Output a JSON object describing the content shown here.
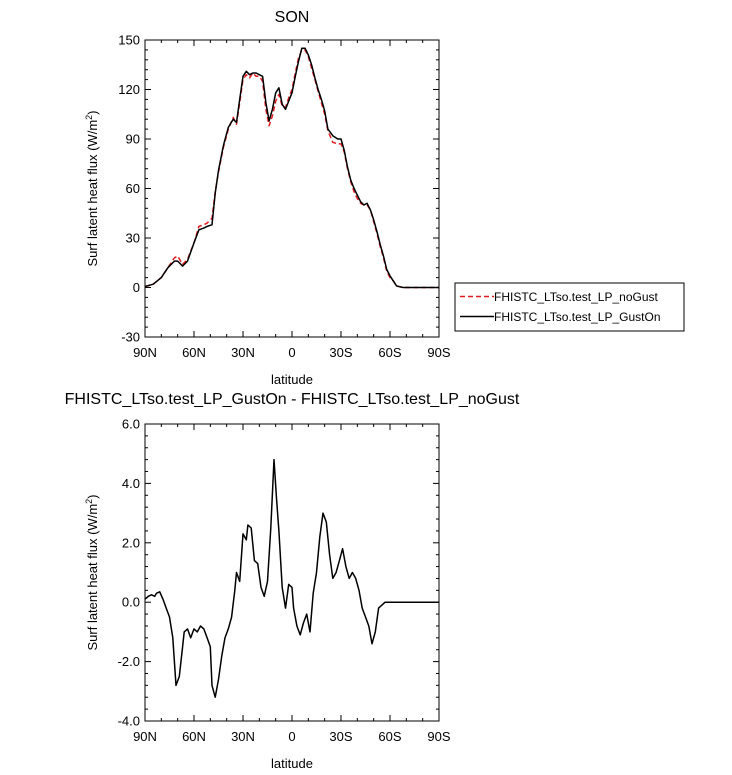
{
  "chart_data": [
    {
      "type": "line",
      "title": "SON",
      "xlabel": "latitude",
      "ylabel": "Surf latent heat flux (W/m",
      "ylabel_sup": "2",
      "ylabel_close": ")",
      "xlim": [
        90,
        -90
      ],
      "ylim": [
        -30,
        150
      ],
      "xticks": [
        {
          "value": 90,
          "label": "90N"
        },
        {
          "value": 60,
          "label": "60N"
        },
        {
          "value": 30,
          "label": "30N"
        },
        {
          "value": 0,
          "label": "0"
        },
        {
          "value": -30,
          "label": "30S"
        },
        {
          "value": -60,
          "label": "60S"
        },
        {
          "value": -90,
          "label": "90S"
        }
      ],
      "yticks": [
        {
          "value": -30,
          "label": "-30"
        },
        {
          "value": 0,
          "label": "0"
        },
        {
          "value": 30,
          "label": "30"
        },
        {
          "value": 60,
          "label": "60"
        },
        {
          "value": 90,
          "label": "90"
        },
        {
          "value": 120,
          "label": "120"
        },
        {
          "value": 150,
          "label": "150"
        }
      ],
      "legend": [
        {
          "name": "FHISTC_LTso.test_LP_noGust",
          "color": "#e41a1c",
          "dash": "dashed"
        },
        {
          "name": "FHISTC_LTso.test_LP_GustOn",
          "color": "#000000",
          "dash": "solid"
        }
      ],
      "series": [
        {
          "name": "FHISTC_LTso.test_LP_noGust",
          "color": "#e41a1c",
          "x": [
            90,
            85,
            80,
            76,
            72,
            70,
            67,
            64,
            60,
            57,
            54,
            52,
            49,
            47,
            45,
            42,
            39,
            36,
            34,
            32,
            30,
            28,
            26,
            24,
            22,
            20,
            18,
            16,
            14,
            12,
            10,
            8,
            6,
            4,
            2,
            0,
            -2,
            -4,
            -6,
            -8,
            -10,
            -12,
            -14,
            -16,
            -18,
            -20,
            -22,
            -25,
            -28,
            -30,
            -32,
            -34,
            -36,
            -38,
            -40,
            -42,
            -44,
            -46,
            -48,
            -50,
            -52,
            -54,
            -56,
            -58,
            -60,
            -62,
            -64,
            -66,
            -68,
            -70,
            -72,
            -75,
            -78,
            -81,
            -85,
            -88,
            -90
          ],
          "y": [
            0.5,
            2,
            6,
            12,
            18,
            19,
            14,
            17,
            27,
            37,
            38,
            39,
            42,
            58,
            70,
            85,
            96,
            103,
            99,
            112,
            126,
            129,
            127,
            130,
            128,
            128,
            125,
            108,
            98,
            104,
            113,
            117,
            110,
            109,
            115,
            120,
            130,
            139,
            144,
            144,
            140,
            133,
            126,
            119,
            112,
            105,
            95,
            88,
            87,
            87,
            82,
            72,
            64,
            58,
            54,
            51,
            50,
            50,
            47,
            40,
            33,
            25,
            18,
            10,
            6,
            4,
            1,
            0.5,
            0,
            0,
            0,
            0,
            0,
            0,
            0,
            0,
            0
          ]
        },
        {
          "name": "FHISTC_LTso.test_LP_GustOn",
          "color": "#000000",
          "x": [
            90,
            85,
            80,
            76,
            72,
            70,
            67,
            64,
            60,
            57,
            54,
            52,
            49,
            47,
            45,
            42,
            39,
            36,
            34,
            32,
            30,
            28,
            26,
            24,
            22,
            20,
            18,
            16,
            14,
            12,
            10,
            8,
            6,
            4,
            2,
            0,
            -2,
            -4,
            -6,
            -8,
            -10,
            -12,
            -14,
            -16,
            -18,
            -20,
            -22,
            -25,
            -28,
            -30,
            -32,
            -34,
            -36,
            -38,
            -40,
            -42,
            -44,
            -46,
            -48,
            -50,
            -52,
            -54,
            -56,
            -58,
            -60,
            -62,
            -64,
            -66,
            -68,
            -70,
            -72,
            -75,
            -78,
            -81,
            -85,
            -88,
            -90
          ],
          "y": [
            0.6,
            2,
            6,
            12,
            16,
            16,
            13,
            16,
            27,
            35,
            36,
            37,
            38,
            57,
            71,
            86,
            97,
            102,
            100,
            114,
            128,
            131,
            129,
            130,
            130,
            129,
            128,
            112,
            101,
            108,
            118,
            121,
            111,
            108,
            113,
            118,
            128,
            137,
            145,
            145,
            141,
            135,
            127,
            120,
            114,
            107,
            96,
            92,
            90,
            90,
            83,
            73,
            65,
            60,
            56,
            52,
            50,
            51,
            47,
            41,
            34,
            26,
            19,
            11,
            7,
            4,
            1,
            0.4,
            0,
            0,
            0,
            0,
            0,
            0,
            0,
            0,
            0
          ]
        }
      ]
    },
    {
      "type": "line",
      "title": "FHISTC_LTso.test_LP_GustOn - FHISTC_LTso.test_LP_noGust",
      "xlabel": "latitude",
      "ylabel": "Surf latent heat flux (W/m",
      "ylabel_sup": "2",
      "ylabel_close": ")",
      "xlim": [
        90,
        -90
      ],
      "ylim": [
        -4.0,
        6.0
      ],
      "xticks": [
        {
          "value": 90,
          "label": "90N"
        },
        {
          "value": 60,
          "label": "60N"
        },
        {
          "value": 30,
          "label": "30N"
        },
        {
          "value": 0,
          "label": "0"
        },
        {
          "value": -30,
          "label": "30S"
        },
        {
          "value": -60,
          "label": "60S"
        },
        {
          "value": -90,
          "label": "90S"
        }
      ],
      "yticks": [
        {
          "value": -4.0,
          "label": "-4.0"
        },
        {
          "value": -2.0,
          "label": "-2.0"
        },
        {
          "value": 0.0,
          "label": "0.0"
        },
        {
          "value": 2.0,
          "label": "2.0"
        },
        {
          "value": 4.0,
          "label": "4.0"
        },
        {
          "value": 6.0,
          "label": "6.0"
        }
      ],
      "series": [
        {
          "name": "FHISTC_LTso.test_LP_GustOn - FHISTC_LTso.test_LP_noGust",
          "color": "#000000",
          "x": [
            90,
            88,
            86,
            84,
            83,
            81,
            79,
            77,
            75,
            73,
            71,
            69,
            67,
            66,
            64,
            62,
            60,
            58,
            56,
            54,
            52,
            50,
            49,
            47,
            45,
            43,
            41,
            39,
            37,
            35,
            34,
            32,
            30,
            28,
            27,
            25,
            23,
            21,
            19,
            17,
            15,
            13,
            11,
            9.5,
            8,
            6,
            4,
            2,
            0,
            -1,
            -3,
            -5,
            -7,
            -9,
            -11,
            -13,
            -15,
            -17,
            -19,
            -21,
            -23,
            -25,
            -27,
            -29,
            -31,
            -33,
            -35,
            -37,
            -39,
            -41,
            -43,
            -45,
            -47,
            -49,
            -51,
            -53,
            -55,
            -57,
            -59,
            -61,
            -63,
            -65,
            -67,
            -69,
            -72,
            -75,
            -78,
            -81,
            -84,
            -87,
            -90
          ],
          "y": [
            0.1,
            0.2,
            0.25,
            0.2,
            0.3,
            0.35,
            0.1,
            -0.2,
            -0.5,
            -1.2,
            -2.8,
            -2.5,
            -1.5,
            -1.0,
            -0.9,
            -1.2,
            -0.9,
            -1.0,
            -0.8,
            -0.9,
            -1.2,
            -1.5,
            -2.8,
            -3.2,
            -2.6,
            -1.8,
            -1.2,
            -0.9,
            -0.5,
            0.4,
            1.0,
            0.7,
            2.3,
            2.1,
            2.6,
            2.5,
            1.4,
            1.3,
            0.5,
            0.2,
            0.7,
            2.5,
            4.8,
            3.5,
            2.4,
            0.5,
            -0.2,
            0.6,
            0.5,
            -0.2,
            -0.8,
            -1.1,
            -0.7,
            -0.4,
            -1.0,
            0.3,
            1.0,
            2.2,
            3.0,
            2.7,
            1.6,
            0.8,
            1.0,
            1.4,
            1.8,
            1.2,
            0.8,
            1.0,
            0.8,
            0.4,
            -0.2,
            -0.5,
            -0.8,
            -1.4,
            -1.0,
            -0.2,
            -0.1,
            0.0,
            0.0,
            0.0,
            0.0,
            0.0,
            0.0,
            0.0,
            0.0,
            0.0,
            0.0,
            0.0,
            0.0,
            0.0,
            0.0
          ]
        }
      ]
    }
  ]
}
